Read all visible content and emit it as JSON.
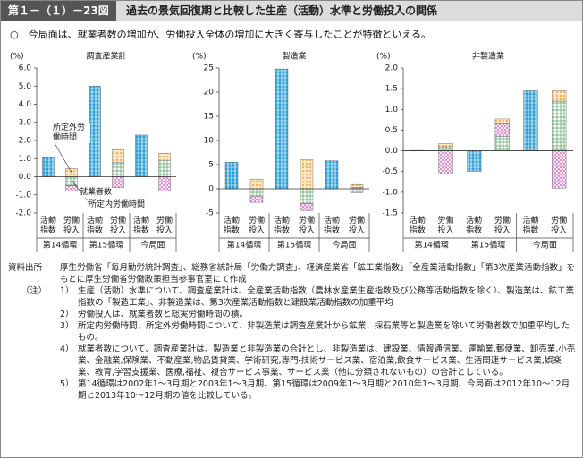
{
  "header": {
    "figure_no": "第１－（１）－23図",
    "title": "過去の景気回復期と比較した生産（活動）水準と労働投入の関係"
  },
  "lead": "○　今局面は、就業者数の増加が、労働投入全体の増加に大きく寄与したことが特徴といえる。",
  "chart_data": [
    {
      "type": "bar",
      "title": "調査産業計",
      "y_label": "(%)",
      "categories": [
        "活動指数",
        "労働投入",
        "活動指数",
        "労働投入",
        "活動指数",
        "労働投入"
      ],
      "groups": [
        "第14循環",
        "第15循環",
        "今局面"
      ],
      "series": [
        {
          "color": "#2b9fd4",
          "values": [
            1.1,
            null,
            5.0,
            null,
            2.3,
            null
          ]
        },
        {
          "name": "就業者数",
          "color": "#6fb07a",
          "values": [
            null,
            -0.5,
            null,
            0.8,
            null,
            0.9
          ]
        },
        {
          "name": "所定内労働時間",
          "color": "#d27fc4",
          "values": [
            null,
            -0.3,
            null,
            -0.6,
            null,
            -0.8
          ]
        },
        {
          "name": "所定外労働時間",
          "color": "#f0a23c",
          "values": [
            null,
            0.45,
            null,
            0.7,
            null,
            0.4
          ]
        }
      ],
      "ylim": [
        -2,
        6
      ],
      "yticks": [
        {
          "value": -2,
          "label": "-2.0"
        },
        {
          "value": -1,
          "label": "-1.0"
        },
        {
          "value": 0,
          "label": "0.0"
        },
        {
          "value": 1,
          "label": "1.0"
        },
        {
          "value": 2,
          "label": "2.0"
        },
        {
          "value": 3,
          "label": "3.0"
        },
        {
          "value": 4,
          "label": "4.0"
        },
        {
          "value": 5,
          "label": "5.0"
        },
        {
          "value": 6,
          "label": "6.0"
        }
      ]
    },
    {
      "type": "bar",
      "title": "製造業",
      "y_label": "(%)",
      "categories": [
        "活動指数",
        "労働投入",
        "活動指数",
        "労働投入",
        "活動指数",
        "労働投入"
      ],
      "groups": [
        "第14循環",
        "第15循環",
        "今局面"
      ],
      "series": [
        {
          "color": "#2b9fd4",
          "values": [
            5.5,
            null,
            24.8,
            null,
            5.8,
            null
          ]
        },
        {
          "color": "#6fb07a",
          "values": [
            null,
            -1.5,
            null,
            -3.0,
            null,
            -0.8
          ]
        },
        {
          "color": "#d27fc4",
          "values": [
            null,
            -1.3,
            null,
            -1.5,
            null,
            0.3
          ]
        },
        {
          "color": "#f0a23c",
          "values": [
            null,
            2.0,
            null,
            6.0,
            null,
            0.6
          ]
        }
      ],
      "ylim": [
        -5,
        25
      ],
      "yticks": [
        -5,
        0,
        5,
        10,
        15,
        20,
        25
      ]
    },
    {
      "type": "bar",
      "title": "非製造業",
      "y_label": "(%)",
      "categories": [
        "活動指数",
        "労働投入",
        "活動指数",
        "労働投入",
        "活動指数",
        "労働投入"
      ],
      "groups": [
        "第14循環",
        "第15循環",
        "今局面"
      ],
      "series": [
        {
          "color": "#2b9fd4",
          "values": [
            0.01,
            null,
            -0.5,
            null,
            1.45,
            null
          ]
        },
        {
          "color": "#6fb07a",
          "values": [
            null,
            0.1,
            null,
            0.35,
            null,
            1.2
          ]
        },
        {
          "color": "#d27fc4",
          "values": [
            null,
            -0.55,
            null,
            0.3,
            null,
            -0.9
          ]
        },
        {
          "color": "#f0a23c",
          "values": [
            null,
            0.08,
            null,
            0.12,
            null,
            0.25
          ]
        }
      ],
      "ylim": [
        -1.5,
        2
      ],
      "yticks": [
        -1.5,
        {
          "value": -1,
          "label": "-1.0"
        },
        -0.5,
        {
          "value": 0,
          "label": "0.0"
        },
        0.5,
        {
          "value": 1,
          "label": "1.0"
        },
        1.5,
        {
          "value": 2,
          "label": "2.0"
        }
      ]
    }
  ],
  "source": {
    "label": "資料出所",
    "text": "厚生労働省「毎月勤労統計調査」、総務省統計局「労働力調査」、経済産業省「鉱工業指数」「全産業活動指数」「第3次産業活動指数」をもとに厚生労働省労働政策担当参事官室にて作成"
  },
  "notes": {
    "label": "（注）",
    "items": [
      {
        "num": "1）",
        "text": "生産（活動）水準について、調査産業計は、全産業活動指数（農林水産業生産指数及び公務等活動指数を除く）、製造業は、鉱工業指数の「製造工業」、非製造業は、第3次産業活動指数と建設業活動指数の加重平均"
      },
      {
        "num": "2）",
        "text": "労働投入は、就業者数と総実労働時間の積。"
      },
      {
        "num": "3）",
        "text": "所定内労働時間、所定外労働時間について、非製造業は調査産業計から鉱業、採石業等と製造業を除いて労働者数で加重平均したもの。"
      },
      {
        "num": "4）",
        "text": "就業者数について、調査産業計は、製造業と非製造業の合計とし、非製造業は、建設業、情報通信業、運輸業,郵便業、卸売業,小売業、金融業,保険業、不動産業,物品賃貸業、学術研究,専門・技術サービス業、宿泊業,飲食サービス業、生活関連サービス業,娯楽業、教育,学習支援業、医療,福祉、複合サービス事業、サービス業（他に分類されないもの）の合計としている。"
      },
      {
        "num": "5）",
        "text": "第14循環は2002年1～3月期と2003年1～3月期、第15循環は2009年1～3月期と2010年1～3月期、今局面は2012年10～12月期と2013年10～12月期の値を比較している。"
      }
    ]
  }
}
